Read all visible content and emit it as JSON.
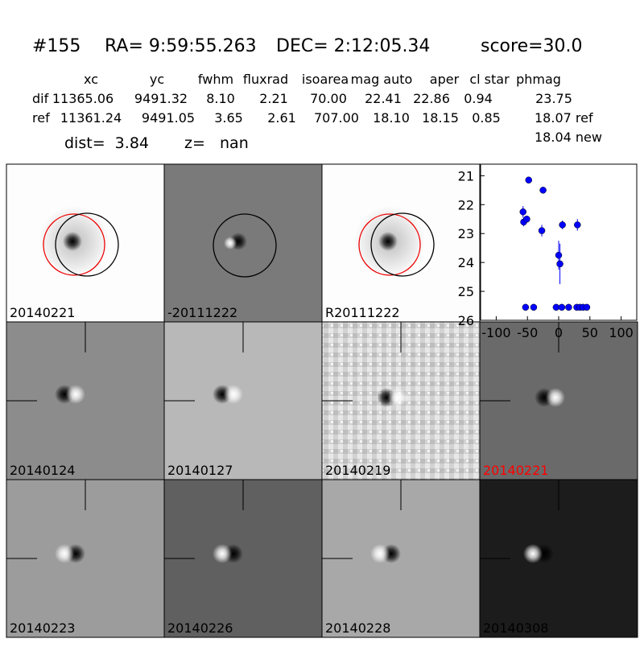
{
  "header": {
    "id": "#155",
    "ra": "RA= 9:59:55.263",
    "dec": "DEC= 2:12:05.34",
    "score": "score=30.0"
  },
  "table": {
    "columns": [
      "xc",
      "yc",
      "fwhm",
      "fluxrad",
      "isoarea",
      "mag auto",
      "aper",
      "cl star",
      "phmag"
    ],
    "rows": [
      [
        "dif",
        "11365.06",
        "9491.32",
        "8.10",
        "2.21",
        "70.00",
        "22.41",
        "22.86",
        "0.94",
        "23.75"
      ],
      [
        "ref",
        "11361.24",
        "9491.05",
        "3.65",
        "2.61",
        "707.00",
        "18.10",
        "18.15",
        "0.85",
        "18.07 ref"
      ]
    ],
    "extra": "18.04 new"
  },
  "dist": "dist=  3.84",
  "z": "z=   nan",
  "stamps": [
    {
      "label": "20140221"
    },
    {
      "label": "-20111222"
    },
    {
      "label": "R20111222"
    },
    {
      "label": "20140124"
    },
    {
      "label": "20140127"
    },
    {
      "label": "20140219"
    },
    {
      "label": "20140221",
      "color": "#ff0000"
    },
    {
      "label": "20140223"
    },
    {
      "label": "20140226"
    },
    {
      "label": "20140228"
    },
    {
      "label": "20140308"
    }
  ],
  "plot": {
    "type": "scatter",
    "color": "#0000ff",
    "x": [
      -57,
      -56,
      -51,
      -48,
      -25,
      -27,
      -53,
      -40,
      0,
      2,
      6,
      30,
      -4,
      5,
      16,
      29,
      34,
      39,
      45
    ],
    "y": [
      22.25,
      22.6,
      22.5,
      21.15,
      21.5,
      22.9,
      25.55,
      25.55,
      23.75,
      24.05,
      22.7,
      22.7,
      25.55,
      25.55,
      25.55,
      25.55,
      25.55,
      25.55,
      25.55
    ],
    "errors": [
      0.2,
      0.15,
      0.1,
      0.05,
      0.05,
      0.2,
      0,
      0,
      0.5,
      0.7,
      0.15,
      0.2,
      0,
      0,
      0,
      0,
      0,
      0,
      0
    ],
    "xlim": [
      -125,
      125
    ],
    "ylim": [
      26,
      20.6
    ],
    "xticks": [
      -100,
      -50,
      0,
      50,
      100
    ],
    "yticks": [
      21,
      22,
      23,
      24,
      25,
      26
    ]
  }
}
